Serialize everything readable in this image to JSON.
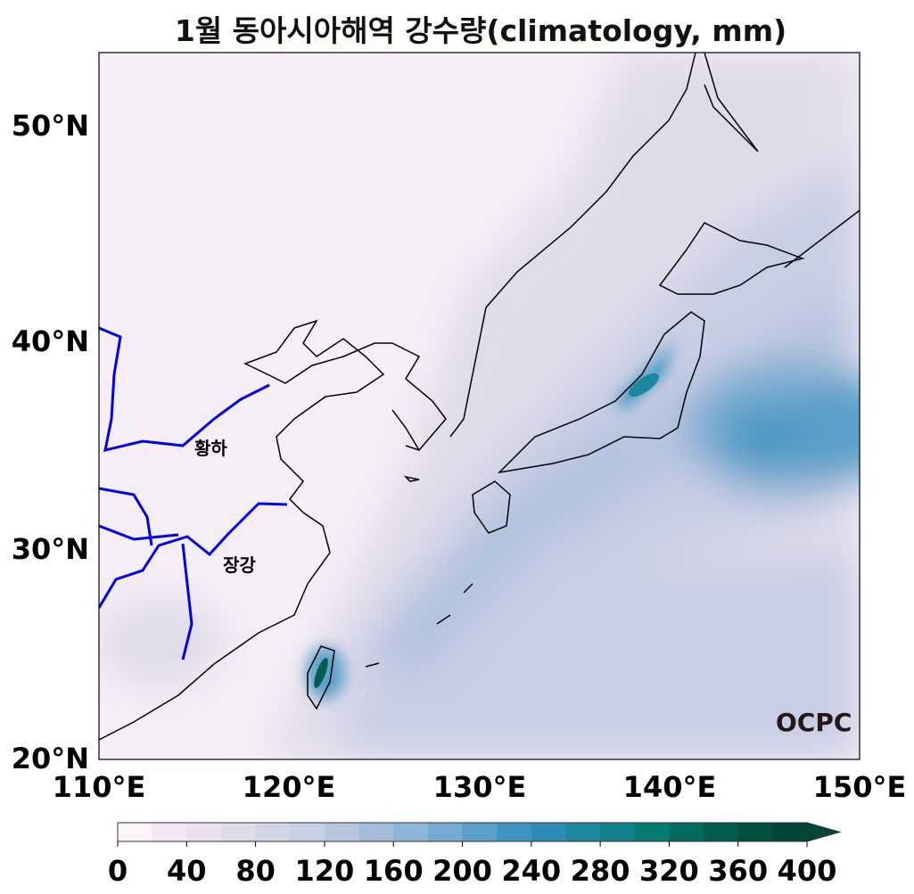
{
  "title": "1월 동아시아해역 강수량(climatology, mm)",
  "axes": {
    "lat_ticks": [
      "20°N",
      "30°N",
      "40°N",
      "50°N"
    ],
    "lon_ticks": [
      "110°E",
      "120°E",
      "130°E",
      "140°E",
      "150°E"
    ],
    "lon_range": [
      110,
      150
    ],
    "lat_range": [
      20,
      53.5
    ]
  },
  "labels": {
    "yellow_river": "황하",
    "yangtze": "장강"
  },
  "logo": "OCPC",
  "colorbar": {
    "ticks": [
      "0",
      "40",
      "80",
      "120",
      "160",
      "200",
      "240",
      "280",
      "320",
      "360",
      "400"
    ],
    "step": 20,
    "extend": "max",
    "colors": [
      "#fbf4f9",
      "#f3e6f2",
      "#ebe1ef",
      "#e0dbeb",
      "#d4d4e8",
      "#c8cee4",
      "#b7c5df",
      "#a5bddb",
      "#8fb6d7",
      "#76aad0",
      "#5a9fc9",
      "#3f95c1",
      "#2d8db6",
      "#1e87a0",
      "#10808a",
      "#047a72",
      "#016c5e",
      "#015e4f",
      "#01503f",
      "#014636"
    ]
  },
  "colors": {
    "coast": "#000000",
    "rivers": "#0000ee"
  }
}
